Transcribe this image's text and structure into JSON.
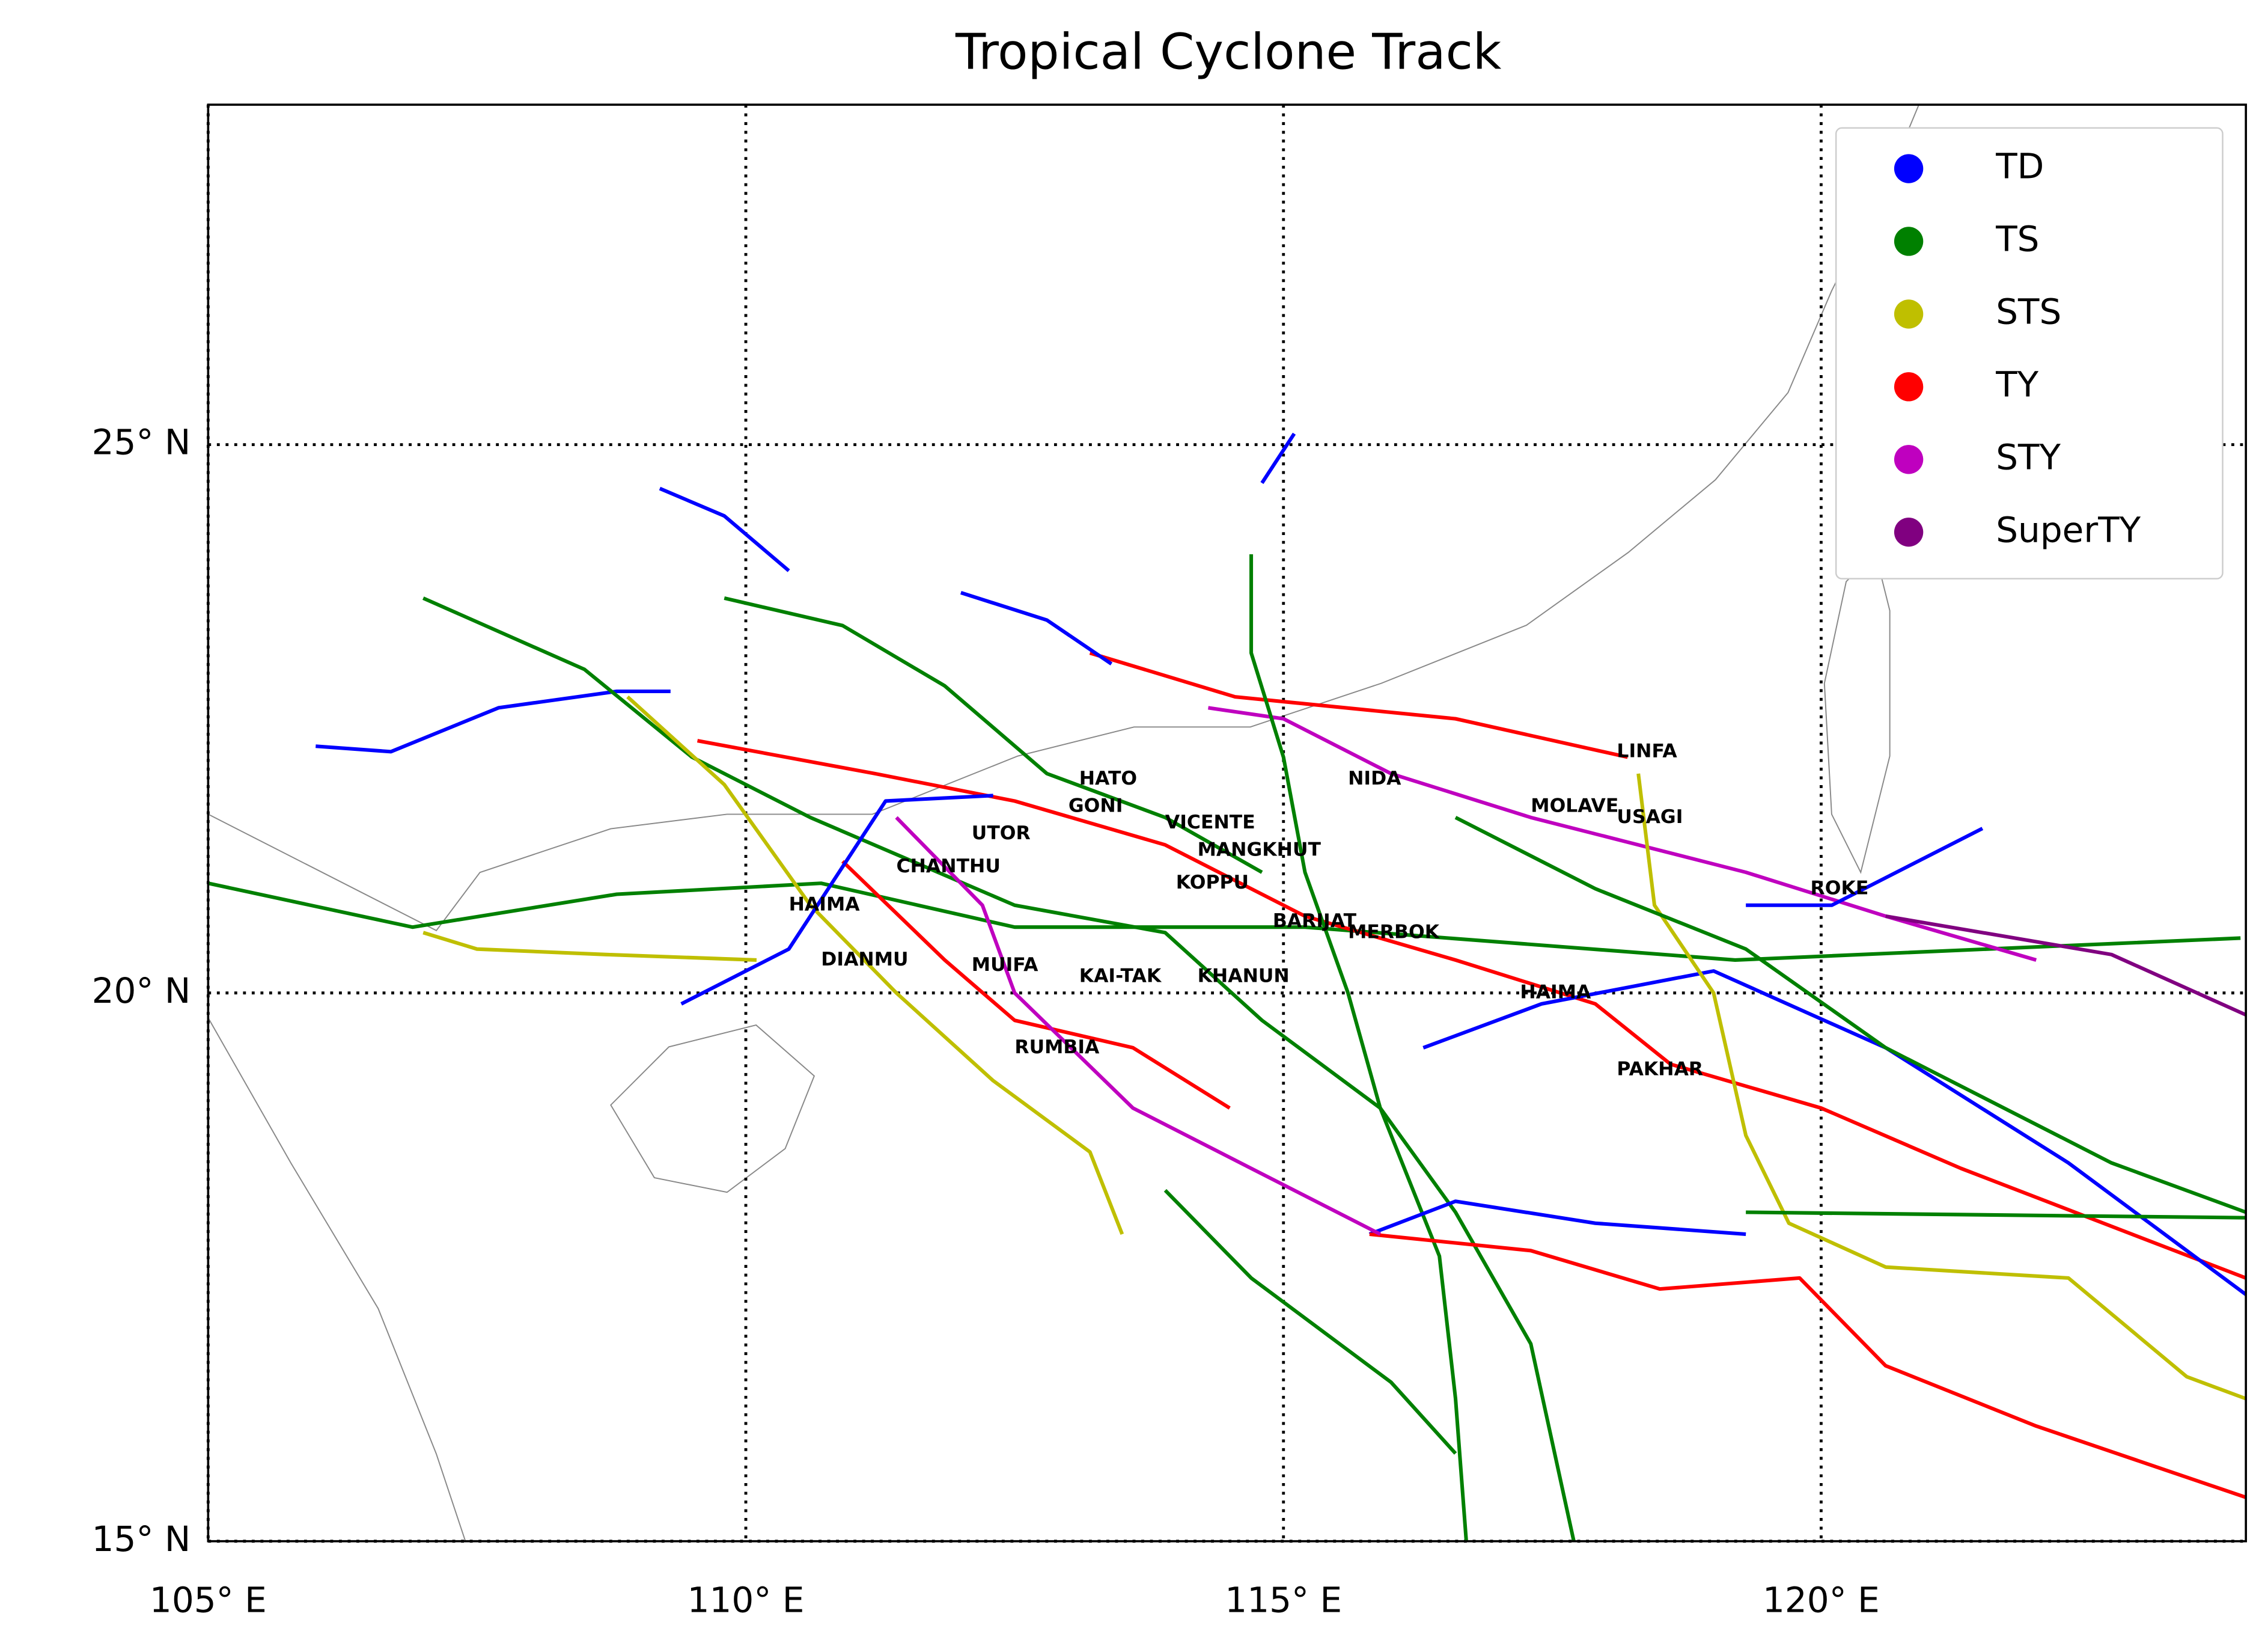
{
  "chart_data": {
    "type": "track",
    "title": "Tropical Cyclone Track",
    "xlim": [
      105,
      123.95
    ],
    "ylim": [
      15,
      28.1
    ],
    "xticks": [
      {
        "value": 105,
        "label": "105° E"
      },
      {
        "value": 110,
        "label": "110° E"
      },
      {
        "value": 115,
        "label": "115° E"
      },
      {
        "value": 120,
        "label": "120° E"
      }
    ],
    "yticks": [
      {
        "value": 15,
        "label": "15° N"
      },
      {
        "value": 20,
        "label": "20° N"
      },
      {
        "value": 25,
        "label": "25° N"
      }
    ],
    "grid": true,
    "legend_position": "upper right",
    "legend": [
      {
        "name": "TD",
        "color": "#0000ff"
      },
      {
        "name": "TS",
        "color": "#008000"
      },
      {
        "name": "STS",
        "color": "#bfbf00"
      },
      {
        "name": "TY",
        "color": "#ff0000"
      },
      {
        "name": "STY",
        "color": "#bf00bf"
      },
      {
        "name": "SuperTY",
        "color": "#800080"
      }
    ],
    "tracks": [
      {
        "color": "#008000",
        "lon": [
          105.0,
          106.9,
          108.8,
          110.7,
          112.5,
          115.2,
          119.2,
          123.9
        ],
        "lat": [
          21.0,
          20.6,
          20.9,
          21.0,
          20.6,
          20.6,
          20.3,
          20.5
        ]
      },
      {
        "color": "#0000ff",
        "lon": [
          106.0,
          106.7,
          107.7,
          108.8,
          109.3
        ],
        "lat": [
          22.25,
          22.2,
          22.6,
          22.75,
          22.75
        ]
      },
      {
        "color": "#008000",
        "lon": [
          107.0,
          108.5,
          109.5,
          110.6,
          112.5,
          113.9,
          114.8,
          115.9,
          116.6,
          117.3,
          117.7
        ],
        "lat": [
          23.6,
          22.95,
          22.15,
          21.6,
          20.8,
          20.55,
          19.75,
          18.95,
          18.0,
          16.8,
          15.0
        ]
      },
      {
        "color": "#ff0000",
        "lon": [
          109.55,
          111.2,
          112.5,
          113.9,
          115.2,
          116.6,
          117.9,
          118.6,
          120.0,
          121.3,
          123.95
        ],
        "lat": [
          22.3,
          22.0,
          21.75,
          21.35,
          20.7,
          20.3,
          19.9,
          19.35,
          18.95,
          18.4,
          17.4
        ]
      },
      {
        "color": "#bfbf00",
        "lon": [
          108.9,
          109.8,
          110.6,
          111.4,
          112.3,
          113.2,
          113.5
        ],
        "lat": [
          22.7,
          21.9,
          20.8,
          20.0,
          19.2,
          18.55,
          17.8
        ]
      },
      {
        "color": "#ff0000",
        "lon": [
          113.2,
          114.55,
          116.6,
          118.2
        ],
        "lat": [
          23.1,
          22.7,
          22.5,
          22.15
        ]
      },
      {
        "color": "#bf00bf",
        "lon": [
          114.3,
          115.0,
          116.0,
          117.3,
          119.3,
          120.6,
          122.0
        ],
        "lat": [
          22.6,
          22.5,
          22.0,
          21.6,
          21.1,
          20.7,
          20.3
        ]
      },
      {
        "color": "#800080",
        "lon": [
          120.6,
          122.7,
          123.95
        ],
        "lat": [
          20.7,
          20.35,
          19.8
        ]
      },
      {
        "color": "#0000ff",
        "lon": [
          116.3,
          117.4,
          119.0,
          120.6,
          122.3,
          123.95
        ],
        "lat": [
          19.5,
          19.9,
          20.2,
          19.5,
          18.45,
          17.25
        ]
      },
      {
        "color": "#008000",
        "lon": [
          114.7,
          114.7,
          115.0,
          115.2,
          115.6,
          115.9,
          116.45,
          116.6,
          116.7
        ],
        "lat": [
          24.0,
          23.1,
          22.15,
          21.1,
          20.0,
          18.95,
          17.6,
          16.3,
          15.0
        ]
      },
      {
        "color": "#0000ff",
        "lon": [
          114.8,
          115.1
        ],
        "lat": [
          24.65,
          25.1
        ]
      },
      {
        "color": "#0000ff",
        "lon": [
          109.2,
          109.8,
          110.4
        ],
        "lat": [
          24.6,
          24.35,
          23.85
        ]
      },
      {
        "color": "#0000ff",
        "lon": [
          112.0,
          112.8,
          113.4
        ],
        "lat": [
          23.65,
          23.4,
          23.0
        ]
      },
      {
        "color": "#008000",
        "lon": [
          109.8,
          110.9,
          111.85,
          112.8,
          113.9,
          114.8
        ],
        "lat": [
          23.6,
          23.35,
          22.8,
          22.0,
          21.6,
          21.1
        ]
      },
      {
        "color": "#bfbf00",
        "lon": [
          118.3,
          118.45,
          119.0,
          119.3,
          119.7,
          120.6,
          122.3,
          123.4,
          123.95
        ],
        "lat": [
          22.0,
          20.8,
          20.0,
          18.7,
          17.9,
          17.5,
          17.4,
          16.5,
          16.3
        ]
      },
      {
        "color": "#008000",
        "lon": [
          116.6,
          117.9,
          119.3,
          120.6,
          122.7,
          123.95
        ],
        "lat": [
          21.6,
          20.95,
          20.4,
          19.5,
          18.45,
          18.0
        ]
      },
      {
        "color": "#0000ff",
        "lon": [
          115.8,
          116.6,
          117.9,
          119.3
        ],
        "lat": [
          17.8,
          18.1,
          17.9,
          17.8
        ]
      },
      {
        "color": "#ff0000",
        "lon": [
          115.8,
          117.3,
          118.5,
          119.8,
          120.6,
          122.0,
          123.95
        ],
        "lat": [
          17.8,
          17.65,
          17.3,
          17.4,
          16.6,
          16.05,
          15.4
        ]
      },
      {
        "color": "#008000",
        "lon": [
          119.3,
          123.95
        ],
        "lat": [
          18.0,
          17.95
        ]
      },
      {
        "color": "#0000ff",
        "lon": [
          119.3,
          120.1,
          121.5
        ],
        "lat": [
          20.8,
          20.8,
          21.5
        ]
      },
      {
        "color": "#008000",
        "lon": [
          113.9,
          114.7,
          116.0,
          116.6
        ],
        "lat": [
          18.2,
          17.4,
          16.45,
          15.8
        ]
      },
      {
        "color": "#ff0000",
        "lon": [
          110.9,
          111.85,
          112.5,
          113.6,
          114.5
        ],
        "lat": [
          21.2,
          20.3,
          19.75,
          19.5,
          18.95
        ]
      },
      {
        "color": "#bf00bf",
        "lon": [
          111.4,
          112.2,
          112.5,
          113.6,
          114.7,
          115.9
        ],
        "lat": [
          21.6,
          20.8,
          20.0,
          18.95,
          18.4,
          17.8
        ]
      },
      {
        "color": "#0000ff",
        "lon": [
          109.4,
          110.4,
          111.3,
          112.3
        ],
        "lat": [
          19.9,
          20.4,
          21.75,
          21.8
        ]
      },
      {
        "color": "#bfbf00",
        "lon": [
          107.0,
          107.5,
          108.7,
          110.1
        ],
        "lat": [
          20.55,
          20.4,
          20.35,
          20.3
        ]
      }
    ],
    "labels": [
      {
        "text": "HATO",
        "lon": 113.1,
        "lat": 21.95
      },
      {
        "text": "GONI",
        "lon": 113.0,
        "lat": 21.7
      },
      {
        "text": "VICENTE",
        "lon": 113.9,
        "lat": 21.55
      },
      {
        "text": "UTOR",
        "lon": 112.1,
        "lat": 21.45
      },
      {
        "text": "MANGKHUT",
        "lon": 114.2,
        "lat": 21.3
      },
      {
        "text": "CHANTHU",
        "lon": 111.4,
        "lat": 21.15
      },
      {
        "text": "KOPPU",
        "lon": 114.0,
        "lat": 21.0
      },
      {
        "text": "HAIMA",
        "lon": 110.4,
        "lat": 20.8
      },
      {
        "text": "BARIJAT",
        "lon": 114.9,
        "lat": 20.65
      },
      {
        "text": "MERBOK",
        "lon": 115.6,
        "lat": 20.55
      },
      {
        "text": "DIANMU",
        "lon": 110.7,
        "lat": 20.3
      },
      {
        "text": "MUIFA",
        "lon": 112.1,
        "lat": 20.25
      },
      {
        "text": "KAI-TAK",
        "lon": 113.1,
        "lat": 20.15
      },
      {
        "text": "KHANUN",
        "lon": 114.2,
        "lat": 20.15
      },
      {
        "text": "RUMBIA",
        "lon": 112.5,
        "lat": 19.5
      },
      {
        "text": "NIDA",
        "lon": 115.6,
        "lat": 21.95
      },
      {
        "text": "LINFA",
        "lon": 118.1,
        "lat": 22.2
      },
      {
        "text": "MOLAVE",
        "lon": 117.3,
        "lat": 21.7
      },
      {
        "text": "USAGI",
        "lon": 118.1,
        "lat": 21.6
      },
      {
        "text": "ROKE",
        "lon": 119.9,
        "lat": 20.95
      },
      {
        "text": "HAIMA",
        "lon": 117.2,
        "lat": 20.0
      },
      {
        "text": "PAKHAR",
        "lon": 118.1,
        "lat": 19.3
      }
    ]
  }
}
